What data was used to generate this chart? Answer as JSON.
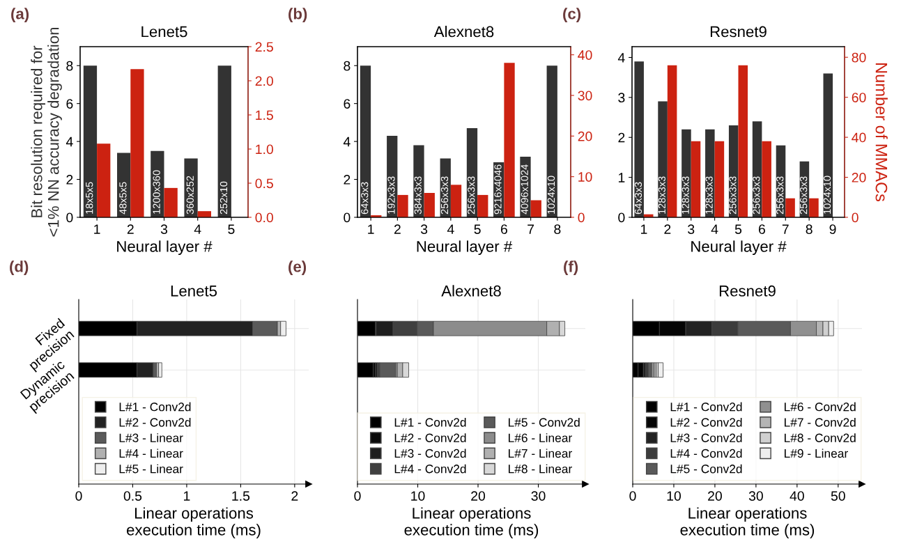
{
  "chart_data": [
    {
      "type": "bar",
      "title": "Lenet5",
      "xlabel": "Neural layer #",
      "ylabel": "Bit resolution required for\n<1% NN accuracy degradation",
      "categories": [
        "1",
        "2",
        "3",
        "4",
        "5"
      ],
      "series": [
        {
          "color": "#333333",
          "values": [
            8,
            3.4,
            3.5,
            3.1,
            8
          ]
        },
        {
          "color": "#cc2211",
          "axis": "y2",
          "values": [
            1.08,
            2.17,
            0.43,
            0.09,
            0
          ]
        }
      ],
      "ylim": [
        0,
        9
      ],
      "yticks": [
        0,
        2,
        4,
        6,
        8
      ],
      "y2lim": [
        0,
        2.5
      ],
      "y2ticks": [
        {
          "value": 0,
          "label": "0.0"
        },
        {
          "value": 0.5,
          "label": "0.5"
        },
        {
          "value": 1,
          "label": "1.0"
        },
        {
          "value": 1.5,
          "label": "1.5"
        },
        {
          "value": 2,
          "label": "2.0"
        },
        {
          "value": 2.5,
          "label": "2.5"
        }
      ],
      "grid": false,
      "legend": false,
      "annotations": [
        "(a)",
        {
          "text": "18x5x5",
          "x": "1",
          "y": 0
        },
        {
          "text": "48x5x5",
          "x": "2",
          "y": 0
        },
        {
          "text": "1200x360",
          "x": "3",
          "y": 0
        },
        {
          "text": "360x252",
          "x": "4",
          "y": 0
        },
        {
          "text": "252x10",
          "x": "5",
          "y": 0
        }
      ]
    },
    {
      "type": "bar",
      "title": "Alexnet8",
      "xlabel": "Neural layer #",
      "categories": [
        "1",
        "2",
        "3",
        "4",
        "5",
        "6",
        "7",
        "8"
      ],
      "series": [
        {
          "color": "#333333",
          "values": [
            8,
            4.3,
            3.8,
            3.1,
            4.7,
            2.9,
            3.2,
            8
          ]
        },
        {
          "color": "#cc2211",
          "axis": "y2",
          "values": [
            0.5,
            5.5,
            6,
            8,
            5.5,
            38,
            4.2,
            0
          ]
        }
      ],
      "ylim": [
        0,
        9
      ],
      "yticks": [
        0,
        2,
        4,
        6,
        8
      ],
      "y2lim": [
        0,
        42
      ],
      "y2ticks": [
        0,
        10,
        20,
        30,
        40
      ],
      "grid": false,
      "legend": false,
      "annotations": [
        "(b)",
        {
          "text": "64x3x3",
          "x": "1",
          "y": 0
        },
        {
          "text": "192x3x3",
          "x": "2",
          "y": 0
        },
        {
          "text": "384x3x3",
          "x": "3",
          "y": 0
        },
        {
          "text": "256x3x3",
          "x": "4",
          "y": 0
        },
        {
          "text": "256x3x3",
          "x": "5",
          "y": 0
        },
        {
          "text": "9216x4046",
          "x": "6",
          "y": 0
        },
        {
          "text": "4096x1024",
          "x": "7",
          "y": 0
        },
        {
          "text": "1024x10",
          "x": "8",
          "y": 0
        }
      ]
    },
    {
      "type": "bar",
      "title": "Resnet9",
      "xlabel": "Neural layer #",
      "y2label": "Number of MMACs",
      "categories": [
        "1",
        "2",
        "3",
        "4",
        "5",
        "6",
        "7",
        "8",
        "9"
      ],
      "series": [
        {
          "color": "#333333",
          "values": [
            3.9,
            2.9,
            2.2,
            2.2,
            2.3,
            2.4,
            1.8,
            1.4,
            3.6
          ]
        },
        {
          "color": "#cc2211",
          "axis": "y2",
          "values": [
            1.5,
            76,
            38,
            38,
            76,
            38,
            9.5,
            9.5,
            0
          ]
        }
      ],
      "ylim": [
        0,
        4.27
      ],
      "yticks": [
        0,
        1,
        2,
        3,
        4
      ],
      "y2lim": [
        0,
        85.3
      ],
      "y2ticks": [
        0,
        20,
        40,
        60,
        80
      ],
      "grid": false,
      "legend": false,
      "annotations": [
        "(c)",
        {
          "text": "64x3x3",
          "x": "1",
          "y": 0
        },
        {
          "text": "128x3x3",
          "x": "2",
          "y": 0
        },
        {
          "text": "128x3x3",
          "x": "3",
          "y": 0
        },
        {
          "text": "128x3x3",
          "x": "4",
          "y": 0
        },
        {
          "text": "256x3x3",
          "x": "5",
          "y": 0
        },
        {
          "text": "256x3x3",
          "x": "6",
          "y": 0
        },
        {
          "text": "256x3x3",
          "x": "7",
          "y": 0
        },
        {
          "text": "256x3x3",
          "x": "8",
          "y": 0
        },
        {
          "text": "1024x10",
          "x": "9",
          "y": 0
        }
      ]
    },
    {
      "type": "bar",
      "orientation": "horizontal",
      "stacked": true,
      "title": "Lenet5",
      "xlabel": "Linear operations\nexecution time (ms)",
      "categories": [
        "Fixed\nprecision",
        "Dynamic\nprecision"
      ],
      "series": [
        {
          "name": "L#1 - Conv2d",
          "color": "#000000",
          "values": [
            0.54,
            0.54
          ]
        },
        {
          "name": "L#2 - Conv2d",
          "color": "#222222",
          "values": [
            1.07,
            0.15
          ]
        },
        {
          "name": "L#3 - Linear",
          "color": "#5a5a5a",
          "values": [
            0.23,
            0.03
          ]
        },
        {
          "name": "L#4 - Linear",
          "color": "#b0b0b0",
          "values": [
            0.03,
            0.02
          ]
        },
        {
          "name": "L#5 - Linear",
          "color": "#eeeeee",
          "values": [
            0.05,
            0.03
          ]
        }
      ],
      "xlim": [
        0,
        2.13
      ],
      "xticks": [
        0,
        0.5,
        1,
        1.5,
        2
      ],
      "grid": true,
      "legend": "bottom left",
      "annotations": [
        "(d)"
      ]
    },
    {
      "type": "bar",
      "orientation": "horizontal",
      "stacked": true,
      "title": "Alexnet8",
      "xlabel": "Linear operations\nexecution time (ms)",
      "categories": [
        null,
        null
      ],
      "series": [
        {
          "name": "L#1 - Conv2d",
          "color": "#000000",
          "values": [
            3.0,
            2.6
          ]
        },
        {
          "name": "L#2 - Conv2d",
          "color": "#0a0a0a",
          "values": [
            0.1,
            0.4
          ]
        },
        {
          "name": "L#3 - Conv2d",
          "color": "#1e1e1e",
          "values": [
            2.8,
            0.3
          ]
        },
        {
          "name": "L#4 - Conv2d",
          "color": "#404040",
          "values": [
            4.0,
            0.4
          ]
        },
        {
          "name": "L#5 - Conv2d",
          "color": "#5a5a5a",
          "values": [
            2.7,
            2.6
          ]
        },
        {
          "name": "L#6 - Linear",
          "color": "#8c8c8c",
          "values": [
            18.8,
            0.3
          ]
        },
        {
          "name": "L#7 - Linear",
          "color": "#b0b0b0",
          "values": [
            2.1,
            0.9
          ]
        },
        {
          "name": "L#8 - Linear",
          "color": "#d8d8d8",
          "values": [
            0.9,
            1.0
          ]
        }
      ],
      "xlim": [
        0,
        37.8
      ],
      "xticks": [
        0,
        10,
        20,
        30
      ],
      "grid": true,
      "legend": "bottom",
      "annotations": [
        "(e)"
      ]
    },
    {
      "type": "bar",
      "orientation": "horizontal",
      "stacked": true,
      "title": "Resnet9",
      "xlabel": "Linear operations\nexecution time (ms)",
      "categories": [
        null,
        null
      ],
      "series": [
        {
          "name": "L#1 - Conv2d",
          "color": "#000000",
          "values": [
            6.5,
            1.3
          ]
        },
        {
          "name": "L#2 - Conv2d",
          "color": "#050505",
          "values": [
            6.4,
            1.3
          ]
        },
        {
          "name": "L#3 - Conv2d",
          "color": "#222222",
          "values": [
            6.4,
            0.6
          ]
        },
        {
          "name": "L#4 - Conv2d",
          "color": "#3c3c3c",
          "values": [
            6.3,
            0.6
          ]
        },
        {
          "name": "L#5 - Conv2d",
          "color": "#5a5a5a",
          "values": [
            12.8,
            0.8
          ]
        },
        {
          "name": "L#6 - Conv2d",
          "color": "#909090",
          "values": [
            6.3,
            0.6
          ]
        },
        {
          "name": "L#7 - Conv2d",
          "color": "#b4b4b4",
          "values": [
            1.6,
            0.5
          ]
        },
        {
          "name": "L#8 - Conv2d",
          "color": "#d0d0d0",
          "values": [
            1.4,
            0.5
          ]
        },
        {
          "name": "L#9 - Linear",
          "color": "#eeeeee",
          "values": [
            1.2,
            1.2
          ]
        }
      ],
      "xlim": [
        0,
        55.8
      ],
      "xticks": [
        0,
        10,
        20,
        30,
        40,
        50
      ],
      "grid": true,
      "legend": "bottom",
      "annotations": [
        "(f)"
      ]
    }
  ]
}
